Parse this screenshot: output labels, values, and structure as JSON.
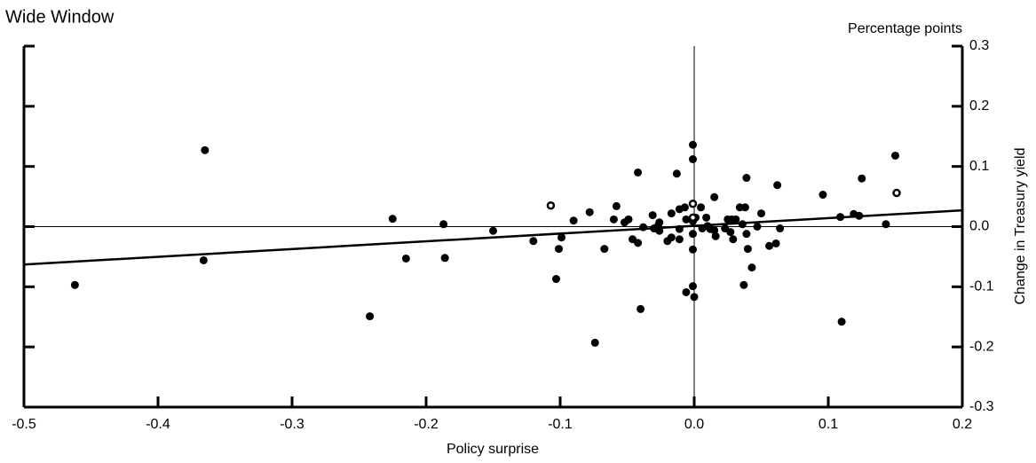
{
  "chart_data": {
    "type": "scatter",
    "title": "Wide Window",
    "unit_label": "Percentage points",
    "x_label": "Policy surprise",
    "y_label": "Change in Treasury yield",
    "xlim": [
      -0.5,
      0.2
    ],
    "ylim": [
      -0.3,
      0.3
    ],
    "xticks": [
      -0.5,
      -0.4,
      -0.3,
      -0.2,
      -0.1,
      {
        "value": 0,
        "label": "0.0"
      },
      0.1,
      0.2
    ],
    "yticks": [
      -0.3,
      -0.2,
      -0.1,
      {
        "value": 0,
        "label": "0.0"
      },
      0.1,
      0.2,
      0.3
    ],
    "zero_lines": true,
    "fit_line": {
      "x": [
        -0.5,
        0.2
      ],
      "y": [
        -0.063,
        0.027
      ]
    },
    "series": [
      {
        "color": "#000000",
        "marker": "filled",
        "x": [
          -0.462,
          -0.365,
          -0.366,
          -0.225,
          -0.215,
          -0.242,
          -0.187,
          -0.186,
          -0.15,
          -0.12,
          -0.103,
          -0.099,
          -0.101,
          -0.09,
          -0.078,
          -0.074,
          -0.067,
          -0.06,
          -0.058,
          -0.052,
          -0.049,
          -0.046,
          -0.042,
          -0.042,
          -0.04,
          -0.038,
          -0.031,
          -0.03,
          -0.027,
          -0.026,
          -0.026,
          -0.02,
          -0.017,
          -0.017,
          -0.013,
          -0.011,
          -0.011,
          -0.011,
          -0.007,
          -0.006,
          -0.006,
          -0.001,
          -0.001,
          -0.001,
          -0.001,
          -0.001,
          -0.001,
          0.0,
          0.001,
          0.005,
          0.006,
          0.009,
          0.01,
          0.012,
          0.015,
          0.015,
          0.016,
          0.023,
          0.025,
          0.027,
          0.028,
          0.029,
          0.031,
          0.034,
          0.036,
          0.037,
          0.039,
          0.038,
          0.039,
          0.04,
          0.043,
          0.047,
          0.05,
          0.056,
          0.061,
          0.062,
          0.064,
          0.096,
          0.109,
          0.11,
          0.119,
          0.123,
          0.125,
          0.143,
          0.15
        ],
        "values": [
          -0.097,
          0.127,
          -0.056,
          0.013,
          -0.053,
          -0.149,
          0.004,
          -0.052,
          -0.007,
          -0.024,
          -0.087,
          -0.018,
          -0.037,
          0.01,
          0.024,
          -0.193,
          -0.037,
          0.012,
          0.034,
          0.007,
          0.012,
          -0.021,
          0.09,
          -0.027,
          -0.137,
          -0.001,
          0.019,
          -0.003,
          0.001,
          0.007,
          -0.007,
          -0.024,
          -0.018,
          0.022,
          0.088,
          0.029,
          -0.004,
          -0.021,
          0.032,
          0.012,
          -0.109,
          0.136,
          0.112,
          0.009,
          -0.012,
          -0.038,
          -0.099,
          -0.117,
          0.015,
          0.032,
          -0.003,
          0.015,
          0.001,
          -0.004,
          -0.006,
          0.049,
          -0.016,
          -0.003,
          0.012,
          -0.009,
          0.012,
          -0.021,
          0.012,
          0.032,
          0.004,
          -0.097,
          0.081,
          0.032,
          -0.012,
          -0.037,
          -0.068,
          0.0,
          0.022,
          -0.032,
          -0.028,
          0.069,
          -0.003,
          0.053,
          0.016,
          -0.158,
          0.021,
          0.018,
          0.08,
          0.004,
          0.118
        ]
      },
      {
        "color": "#000000",
        "marker": "open",
        "x": [
          -0.107,
          -0.001,
          -0.001,
          0.151
        ],
        "values": [
          0.035,
          0.038,
          0.015,
          0.056
        ]
      }
    ]
  }
}
